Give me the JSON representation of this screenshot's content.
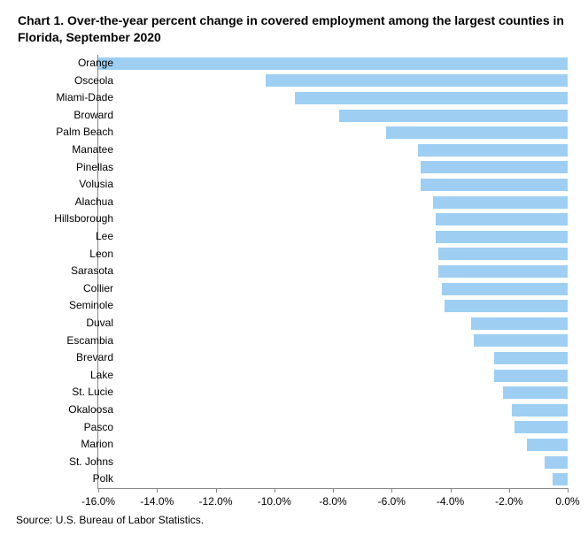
{
  "chart": {
    "type": "bar-horizontal",
    "title": "Chart 1. Over-the-year percent change in covered employment among the largest counties in Florida, September 2020",
    "source": "Source: U.S. Bureau of Labor Statistics.",
    "bar_color": "#9ecff3",
    "background_color": "#ffffff",
    "axis_color": "#888888",
    "title_fontsize": 14,
    "label_fontsize": 12,
    "xlim": [
      -16.0,
      0.0
    ],
    "xtick_step": 2.0,
    "xtick_labels": [
      "-16.0%",
      "-14.0%",
      "-12.0%",
      "-10.0%",
      "-8.0%",
      "-6.0%",
      "-4.0%",
      "-2.0%",
      "0.0%"
    ],
    "categories": [
      "Orange",
      "Osceola",
      "Miami-Dade",
      "Broward",
      "Palm Beach",
      "Manatee",
      "Pinellas",
      "Volusia",
      "Alachua",
      "Hillsborough",
      "Lee",
      "Leon",
      "Sarasota",
      "Collier",
      "Seminole",
      "Duval",
      "Escambia",
      "Brevard",
      "Lake",
      "St. Lucie",
      "Okaloosa",
      "Pasco",
      "Marion",
      "St. Johns",
      "Polk"
    ],
    "values": [
      -16.0,
      -10.3,
      -9.3,
      -7.8,
      -6.2,
      -5.1,
      -5.0,
      -5.0,
      -4.6,
      -4.5,
      -4.5,
      -4.4,
      -4.4,
      -4.3,
      -4.2,
      -3.3,
      -3.2,
      -2.5,
      -2.5,
      -2.2,
      -1.9,
      -1.8,
      -1.4,
      -0.8,
      -0.5
    ]
  }
}
